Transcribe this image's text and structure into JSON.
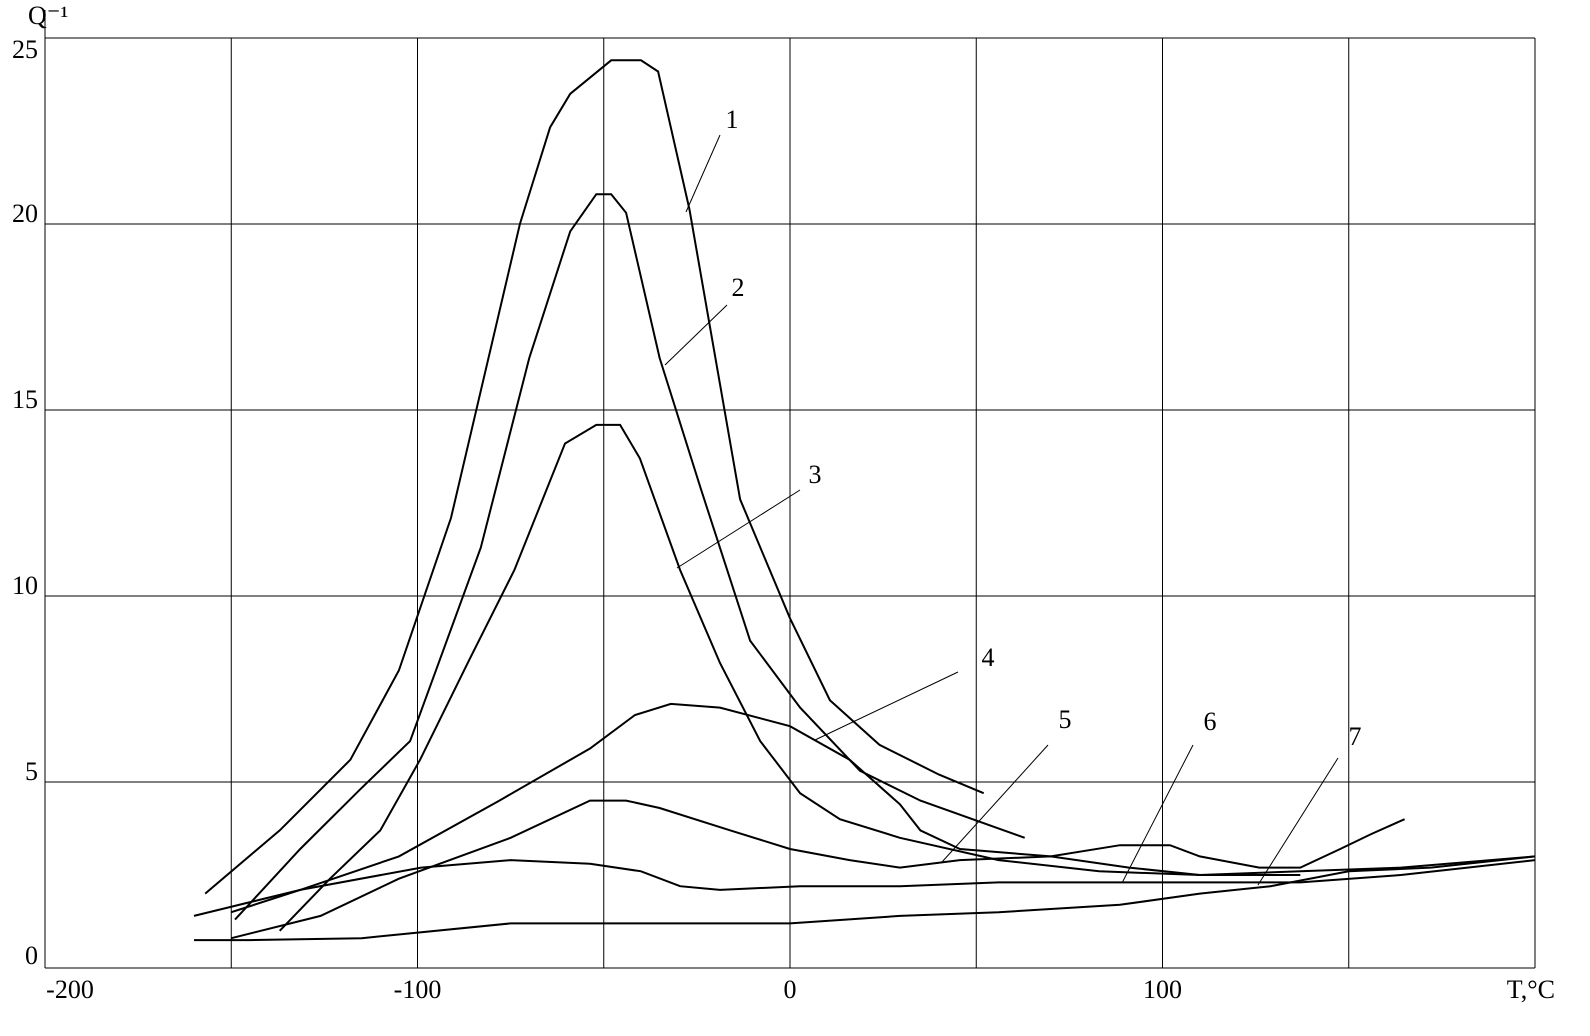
{
  "chart_data": {
    "type": "line",
    "x_label": "T,°C",
    "y_label": "Q⁻¹",
    "xlim": [
      -200,
      200
    ],
    "ylim": [
      0,
      25
    ],
    "xticks": [
      -200,
      {
        "value": -150,
        "label": null
      },
      -100,
      {
        "value": -50,
        "label": null
      },
      0,
      {
        "value": 50,
        "label": null
      },
      100,
      {
        "value": 150,
        "label": null
      },
      {
        "value": 200,
        "label": null
      }
    ],
    "yticks": [
      0,
      5,
      10,
      15,
      20,
      25
    ],
    "grid": true,
    "series": [
      {
        "name": "1",
        "color": "#000000",
        "x": [
          -157,
          -137,
          -118,
          -105,
          -91,
          -72.5,
          -64.4,
          -59,
          -48,
          -40,
          -35.4,
          -27,
          -13.4,
          0,
          10.7,
          24,
          40,
          52
        ],
        "values": [
          2.0,
          3.7,
          5.6,
          8.0,
          12.1,
          20.0,
          22.6,
          23.5,
          24.4,
          24.4,
          24.1,
          20.4,
          12.6,
          9.4,
          7.2,
          6.0,
          5.2,
          4.7
        ]
      },
      {
        "name": "2",
        "color": "#000000",
        "x": [
          -149,
          -131.5,
          -115.4,
          -102,
          -83,
          -70,
          -59,
          -52,
          -48,
          -44,
          -35,
          -24,
          -10.7,
          2.7,
          18.8,
          35,
          63
        ],
        "values": [
          1.3,
          3.2,
          4.8,
          6.1,
          11.3,
          16.4,
          19.8,
          20.8,
          20.8,
          20.3,
          16.4,
          12.9,
          8.8,
          7.0,
          5.3,
          4.5,
          3.5
        ]
      },
      {
        "name": "3",
        "color": "#000000",
        "x": [
          -137,
          -123.5,
          -110,
          -99.3,
          -86,
          -74,
          -60.4,
          -52,
          -45.6,
          -40.3,
          -29.5,
          -18.8,
          -8,
          2.7,
          13.4,
          29.5,
          56,
          83,
          110,
          137
        ],
        "values": [
          1.0,
          2.4,
          3.7,
          5.6,
          8.3,
          10.7,
          14.1,
          14.6,
          14.6,
          13.7,
          10.7,
          8.2,
          6.1,
          4.7,
          4.0,
          3.5,
          2.9,
          2.6,
          2.5,
          2.5
        ]
      },
      {
        "name": "4",
        "color": "#000000",
        "x": [
          -150,
          -131.5,
          -105,
          -78,
          -53.7,
          -41.6,
          -32,
          -18.8,
          0,
          16,
          29.5,
          35,
          45.6,
          70,
          88.6,
          102,
          110,
          126,
          137,
          147.7,
          156,
          165
        ],
        "values": [
          1.5,
          2.1,
          3.0,
          4.5,
          5.9,
          6.8,
          7.1,
          7.0,
          6.5,
          5.6,
          4.4,
          3.7,
          3.2,
          3.0,
          3.3,
          3.3,
          3.0,
          2.7,
          2.7,
          3.2,
          3.6,
          4.0
        ]
      },
      {
        "name": "5",
        "color": "#000000",
        "x": [
          -150,
          -126,
          -105,
          -75,
          -53.7,
          -44,
          -35,
          -16,
          0,
          16,
          29.5,
          45.6,
          70,
          91,
          110,
          137,
          164,
          200
        ],
        "values": [
          0.8,
          1.4,
          2.4,
          3.5,
          4.5,
          4.5,
          4.3,
          3.7,
          3.2,
          2.9,
          2.7,
          2.9,
          3.0,
          2.7,
          2.5,
          2.6,
          2.7,
          3.0
        ]
      },
      {
        "name": "6",
        "color": "#000000",
        "x": [
          -160,
          -131.5,
          -99,
          -75,
          -53.7,
          -40,
          -29.5,
          -18.8,
          2.7,
          29.5,
          56,
          83,
          110,
          137,
          164,
          200
        ],
        "values": [
          1.4,
          2.1,
          2.7,
          2.9,
          2.8,
          2.6,
          2.2,
          2.1,
          2.2,
          2.2,
          2.3,
          2.3,
          2.3,
          2.3,
          2.5,
          2.9
        ]
      },
      {
        "name": "7",
        "color": "#000000",
        "x": [
          -160,
          -145,
          -115,
          -75,
          -40,
          0,
          29.5,
          56,
          88.6,
          110,
          129,
          150,
          172,
          200
        ],
        "values": [
          0.75,
          0.75,
          0.8,
          1.2,
          1.2,
          1.2,
          1.4,
          1.5,
          1.7,
          2.0,
          2.2,
          2.6,
          2.7,
          3.0
        ]
      }
    ]
  }
}
